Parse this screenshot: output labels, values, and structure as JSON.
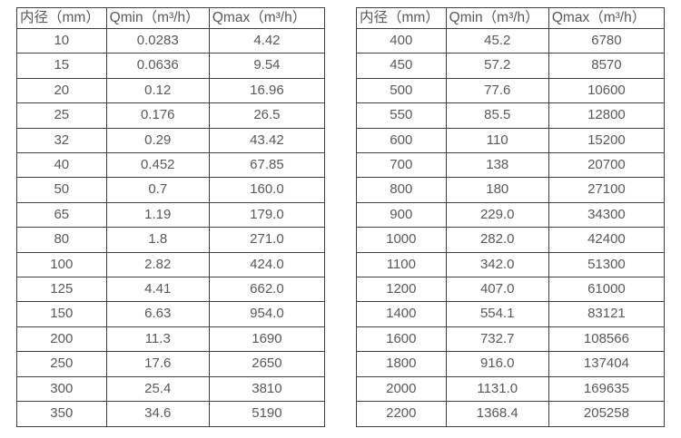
{
  "colors": {
    "background": "#ffffff",
    "table_border": "#404040",
    "table_text": "#595959"
  },
  "column_widths": [
    "29.1%",
    "33.4%",
    "37.5%"
  ],
  "tables": [
    {
      "name": "small-diameters",
      "headers": [
        "内径（mm）",
        "Qmin（m³/h）",
        "Qmax（m³/h）"
      ],
      "rows": [
        [
          "10",
          "0.0283",
          "4.42"
        ],
        [
          "15",
          "0.0636",
          "9.54"
        ],
        [
          "20",
          "0.12",
          "16.96"
        ],
        [
          "25",
          "0.176",
          "26.5"
        ],
        [
          "32",
          "0.29",
          "43.42"
        ],
        [
          "40",
          "0.452",
          "67.85"
        ],
        [
          "50",
          "0.7",
          "160.0"
        ],
        [
          "65",
          "1.19",
          "179.0"
        ],
        [
          "80",
          "1.8",
          "271.0"
        ],
        [
          "100",
          "2.82",
          "424.0"
        ],
        [
          "125",
          "4.41",
          "662.0"
        ],
        [
          "150",
          "6.63",
          "954.0"
        ],
        [
          "200",
          "11.3",
          "1690"
        ],
        [
          "250",
          "17.6",
          "2650"
        ],
        [
          "300",
          "25.4",
          "3810"
        ],
        [
          "350",
          "34.6",
          "5190"
        ]
      ]
    },
    {
      "name": "large-diameters",
      "headers": [
        "内径（mm）",
        "Qmin（m³/h）",
        "Qmax（m³/h）"
      ],
      "rows": [
        [
          "400",
          "45.2",
          "6780"
        ],
        [
          "450",
          "57.2",
          "8570"
        ],
        [
          "500",
          "77.6",
          "10600"
        ],
        [
          "550",
          "85.5",
          "12800"
        ],
        [
          "600",
          "110",
          "15200"
        ],
        [
          "700",
          "138",
          "20700"
        ],
        [
          "800",
          "180",
          "27100"
        ],
        [
          "900",
          "229.0",
          "34300"
        ],
        [
          "1000",
          "282.0",
          "42400"
        ],
        [
          "1100",
          "342.0",
          "51300"
        ],
        [
          "1200",
          "407.0",
          "61000"
        ],
        [
          "1400",
          "554.1",
          "83121"
        ],
        [
          "1600",
          "732.7",
          "108566"
        ],
        [
          "1800",
          "916.0",
          "137404"
        ],
        [
          "2000",
          "1131.0",
          "169635"
        ],
        [
          "2200",
          "1368.4",
          "205258"
        ]
      ]
    }
  ]
}
